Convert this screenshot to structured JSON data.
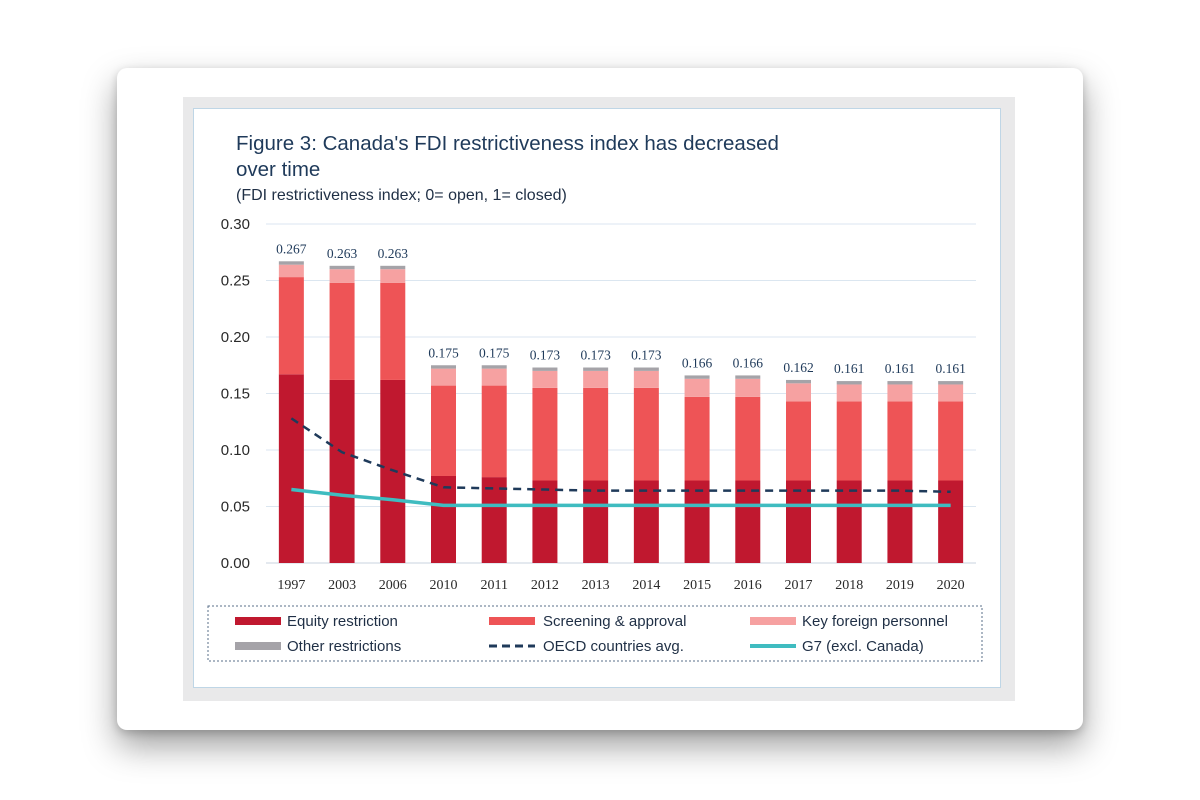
{
  "chart_data": {
    "type": "bar",
    "stacked": true,
    "title_lines": [
      "Figure 3: Canada's FDI restrictiveness index has decreased",
      "over time"
    ],
    "subtitle": "(FDI restrictiveness index; 0= open, 1= closed)",
    "categories": [
      "1997",
      "2003",
      "2006",
      "2010",
      "2011",
      "2012",
      "2013",
      "2014",
      "2015",
      "2016",
      "2017",
      "2018",
      "2019",
      "2020"
    ],
    "ylim": [
      0,
      0.3
    ],
    "yticks": [
      "0.00",
      "0.05",
      "0.10",
      "0.15",
      "0.20",
      "0.25",
      "0.30"
    ],
    "grid": true,
    "legend_position": "bottom",
    "series": [
      {
        "name": "Equity restriction",
        "color": "#c0182f",
        "values": [
          0.167,
          0.162,
          0.162,
          0.077,
          0.076,
          0.073,
          0.073,
          0.073,
          0.073,
          0.073,
          0.073,
          0.073,
          0.073,
          0.073
        ]
      },
      {
        "name": "Screening & approval",
        "color": "#ee5456",
        "values": [
          0.086,
          0.086,
          0.086,
          0.08,
          0.081,
          0.082,
          0.082,
          0.082,
          0.074,
          0.074,
          0.07,
          0.07,
          0.07,
          0.07
        ]
      },
      {
        "name": "Key foreign personnel",
        "color": "#f6a1a1",
        "values": [
          0.011,
          0.012,
          0.012,
          0.015,
          0.015,
          0.015,
          0.015,
          0.015,
          0.016,
          0.016,
          0.016,
          0.015,
          0.015,
          0.015
        ]
      },
      {
        "name": "Other restrictions",
        "color": "#a5a3a8",
        "values": [
          0.003,
          0.003,
          0.003,
          0.003,
          0.003,
          0.003,
          0.003,
          0.003,
          0.003,
          0.003,
          0.003,
          0.003,
          0.003,
          0.003
        ]
      }
    ],
    "lines": [
      {
        "name": "OECD countries avg.",
        "color": "#1f3a5a",
        "dash": true,
        "values": [
          0.128,
          0.098,
          0.082,
          0.067,
          0.066,
          0.065,
          0.064,
          0.064,
          0.064,
          0.064,
          0.064,
          0.064,
          0.064,
          0.063
        ]
      },
      {
        "name": "G7 (excl. Canada)",
        "color": "#3fbcc0",
        "dash": false,
        "values": [
          0.065,
          0.06,
          0.056,
          0.051,
          0.051,
          0.051,
          0.051,
          0.051,
          0.051,
          0.051,
          0.051,
          0.051,
          0.051,
          0.051
        ]
      }
    ],
    "data_labels": [
      "0.267",
      "0.263",
      "0.263",
      "0.175",
      "0.175",
      "0.173",
      "0.173",
      "0.173",
      "0.166",
      "0.166",
      "0.162",
      "0.161",
      "0.161",
      "0.161"
    ]
  }
}
